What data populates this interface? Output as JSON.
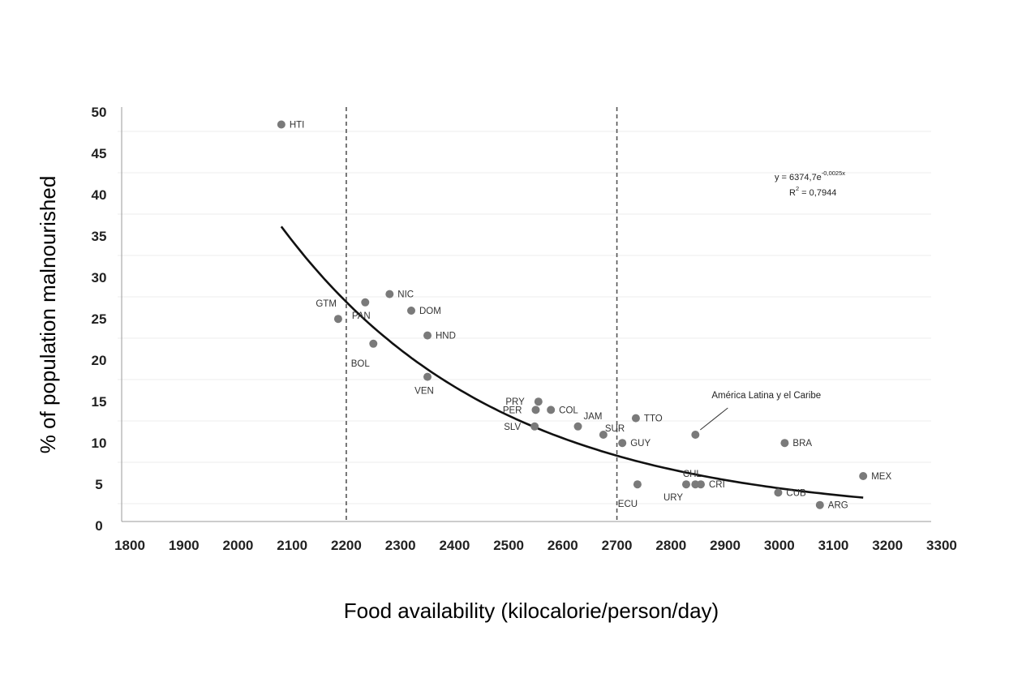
{
  "chart_data": {
    "type": "scatter",
    "xlabel": "Food availability (kilocalorie/person/day)",
    "ylabel": "% of population malnourished",
    "xlim": [
      1800,
      3300
    ],
    "ylim": [
      0,
      50
    ],
    "x_ticks": [
      "1800",
      "1900",
      "2000",
      "2100",
      "2200",
      "2300",
      "2400",
      "2500",
      "2600",
      "2700",
      "2800",
      "2900",
      "3000",
      "3100",
      "3200",
      "3300"
    ],
    "y_ticks": [
      "0",
      "5",
      "10",
      "15",
      "20",
      "25",
      "30",
      "35",
      "40",
      "45",
      "50"
    ],
    "grid": "horizontal, faint",
    "reference_lines_x": [
      2200,
      2700
    ],
    "points": [
      {
        "label": "HTI",
        "x": 2080,
        "y": 47.5,
        "label_pos": "right"
      },
      {
        "label": "GTM",
        "x": 2185,
        "y": 24,
        "label_pos": "above-left"
      },
      {
        "label": "PAN",
        "x": 2235,
        "y": 26,
        "label_pos": "below-left"
      },
      {
        "label": "BOL",
        "x": 2250,
        "y": 21,
        "label_pos": "below-left"
      },
      {
        "label": "NIC",
        "x": 2280,
        "y": 27,
        "label_pos": "right"
      },
      {
        "label": "DOM",
        "x": 2320,
        "y": 25,
        "label_pos": "right"
      },
      {
        "label": "HND",
        "x": 2350,
        "y": 22,
        "label_pos": "right"
      },
      {
        "label": "VEN",
        "x": 2350,
        "y": 17,
        "label_pos": "below"
      },
      {
        "label": "PRY",
        "x": 2555,
        "y": 14,
        "label_pos": "left"
      },
      {
        "label": "PER",
        "x": 2550,
        "y": 13,
        "label_pos": "left"
      },
      {
        "label": "SLV",
        "x": 2548,
        "y": 11,
        "label_pos": "left"
      },
      {
        "label": "COL",
        "x": 2578,
        "y": 13,
        "label_pos": "right"
      },
      {
        "label": "JAM",
        "x": 2628,
        "y": 11,
        "label_pos": "above-right"
      },
      {
        "label": "SUR",
        "x": 2675,
        "y": 10,
        "label_pos": "right"
      },
      {
        "label": "GUY",
        "x": 2710,
        "y": 9,
        "label_pos": "right"
      },
      {
        "label": "TTO",
        "x": 2735,
        "y": 12,
        "label_pos": "right"
      },
      {
        "label": "ECU",
        "x": 2738,
        "y": 4,
        "label_pos": "below-left"
      },
      {
        "label": "URY",
        "x": 2828,
        "y": 4,
        "label_pos": "below-left"
      },
      {
        "label": "CHL",
        "x": 2845,
        "y": 4,
        "label_pos": "above"
      },
      {
        "label": "CRI",
        "x": 2855,
        "y": 4,
        "label_pos": "right"
      },
      {
        "label": "América Latina y el Caribe",
        "x": 2845,
        "y": 10,
        "label_pos": "callout"
      },
      {
        "label": "BRA",
        "x": 3010,
        "y": 9,
        "label_pos": "right"
      },
      {
        "label": "CUB",
        "x": 2998,
        "y": 3,
        "label_pos": "right"
      },
      {
        "label": "ARG",
        "x": 3075,
        "y": 1.5,
        "label_pos": "right"
      },
      {
        "label": "MEX",
        "x": 3155,
        "y": 5,
        "label_pos": "right"
      }
    ],
    "trendline": {
      "type": "exponential",
      "a": 6374.7,
      "b": -0.0025,
      "x_range": [
        2080,
        3155
      ],
      "equation_base": "y = 6374,7e",
      "equation_exp": "-0,0025x",
      "r2_base": "R",
      "r2_sup": "2",
      "r2_rest": " = 0,7944"
    },
    "colors": {
      "point": "#7a7a7a",
      "line": "#111111",
      "axis": "#999999",
      "grid": "#eeeeee"
    }
  }
}
